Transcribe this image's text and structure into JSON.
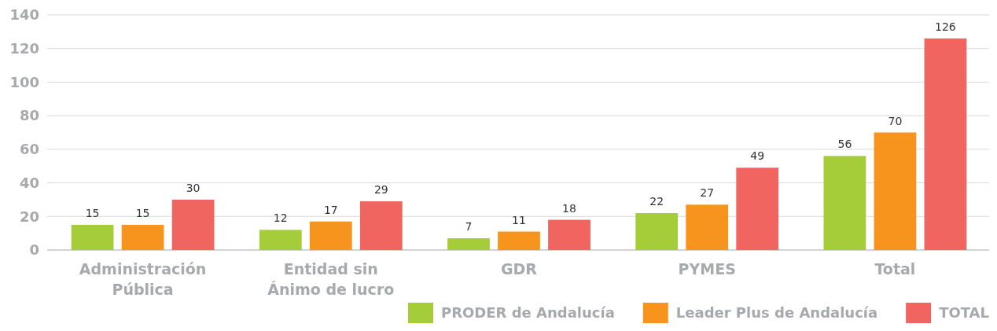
{
  "chart_data": {
    "type": "bar",
    "categories": [
      "Administración Pública",
      "Entidad sin Ánimo de lucro",
      "GDR",
      "PYMES",
      "Total"
    ],
    "series": [
      {
        "name": "PRODER de Andalucía",
        "color": "#a5cd39",
        "values": [
          15,
          12,
          7,
          22,
          56
        ]
      },
      {
        "name": "Leader Plus de Andalucía",
        "color": "#f7941d",
        "values": [
          15,
          17,
          11,
          27,
          70
        ]
      },
      {
        "name": "TOTAL",
        "color": "#f06560",
        "values": [
          30,
          29,
          18,
          49,
          126
        ]
      }
    ],
    "ylim": [
      0,
      140
    ],
    "yticks": [
      0,
      20,
      40,
      60,
      80,
      100,
      120,
      140
    ],
    "grid": "y",
    "legend": "bottom right",
    "data_labels": true
  }
}
